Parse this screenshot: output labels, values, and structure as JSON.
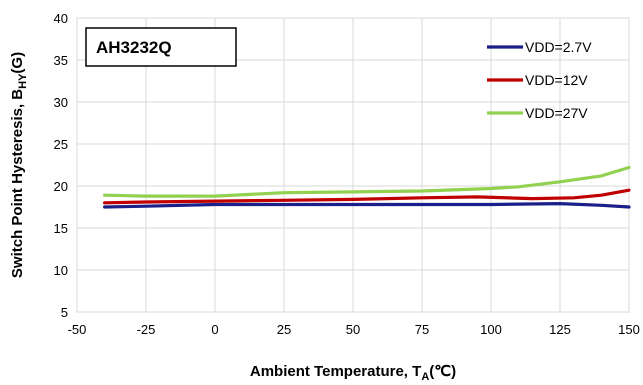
{
  "chart_data": {
    "type": "line",
    "badge": "AH3232Q",
    "xlabel": {
      "main": "Ambient  Temperature, T",
      "sub": "A",
      "unit": "(℃)"
    },
    "ylabel": {
      "main": "Switch Point Hysteresis, B",
      "sub": "HY",
      "unit": "(G)"
    },
    "xlim": [
      -50,
      150
    ],
    "ylim": [
      5,
      40
    ],
    "xticks": [
      -50,
      -25,
      0,
      25,
      50,
      75,
      100,
      125,
      150
    ],
    "yticks": [
      5,
      10,
      15,
      20,
      25,
      30,
      35,
      40
    ],
    "grid": true,
    "legend_position": "top-right",
    "series": [
      {
        "name": "VDD=2.7V",
        "color": "#1b1f8a",
        "points": [
          [
            -40,
            17.5
          ],
          [
            -25,
            17.6
          ],
          [
            0,
            17.8
          ],
          [
            25,
            17.8
          ],
          [
            50,
            17.8
          ],
          [
            75,
            17.8
          ],
          [
            100,
            17.8
          ],
          [
            125,
            17.9
          ],
          [
            140,
            17.7
          ],
          [
            150,
            17.5
          ]
        ]
      },
      {
        "name": "VDD=12V",
        "color": "#c00000",
        "points": [
          [
            -40,
            18.0
          ],
          [
            -25,
            18.1
          ],
          [
            0,
            18.2
          ],
          [
            25,
            18.3
          ],
          [
            50,
            18.4
          ],
          [
            75,
            18.6
          ],
          [
            95,
            18.7
          ],
          [
            115,
            18.5
          ],
          [
            130,
            18.6
          ],
          [
            140,
            18.9
          ],
          [
            150,
            19.5
          ]
        ]
      },
      {
        "name": "VDD=27V",
        "color": "#92d050",
        "points": [
          [
            -40,
            18.9
          ],
          [
            -25,
            18.8
          ],
          [
            0,
            18.8
          ],
          [
            25,
            19.2
          ],
          [
            50,
            19.3
          ],
          [
            75,
            19.4
          ],
          [
            100,
            19.7
          ],
          [
            110,
            19.9
          ],
          [
            125,
            20.5
          ],
          [
            140,
            21.2
          ],
          [
            150,
            22.2
          ]
        ]
      }
    ]
  }
}
